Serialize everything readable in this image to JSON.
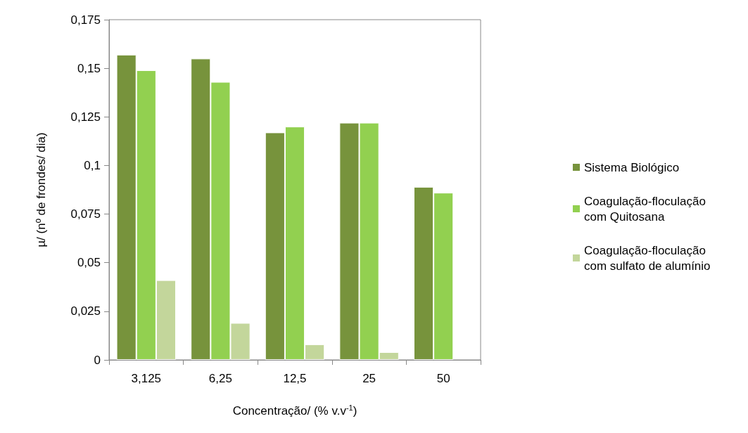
{
  "chart_data": {
    "type": "bar",
    "xlabel": "Concentração/ (% v.v$^{-1}$)",
    "ylabel": "µ/ (nº de frondes/ dia)",
    "categories": [
      "3,125",
      "6,25",
      "12,5",
      "25",
      "50"
    ],
    "series": [
      {
        "name": "Sistema Biológico",
        "color": "#77933c",
        "values": [
          0.157,
          0.155,
          0.117,
          0.122,
          0.089
        ]
      },
      {
        "name": "Coagulação-floculação com Quitosana",
        "color": "#92d050",
        "values": [
          0.149,
          0.143,
          0.12,
          0.122,
          0.086
        ]
      },
      {
        "name": "Coagulação-floculação com sulfato de alumínio",
        "color": "#c3d69b",
        "values": [
          0.041,
          0.019,
          0.008,
          0.004,
          null
        ]
      }
    ],
    "ylim": [
      0,
      0.175
    ],
    "yticks": [
      0,
      {
        "value": 0.025,
        "label": "0,025"
      },
      {
        "value": 0.05,
        "label": "0,05"
      },
      {
        "value": 0.075,
        "label": "0,075"
      },
      {
        "value": 0.1,
        "label": "0,1"
      },
      {
        "value": 0.125,
        "label": "0,125"
      },
      {
        "value": 0.15,
        "label": "0,15"
      },
      {
        "value": 0.175,
        "label": "0,175"
      }
    ],
    "grid": false,
    "legend": "right"
  }
}
